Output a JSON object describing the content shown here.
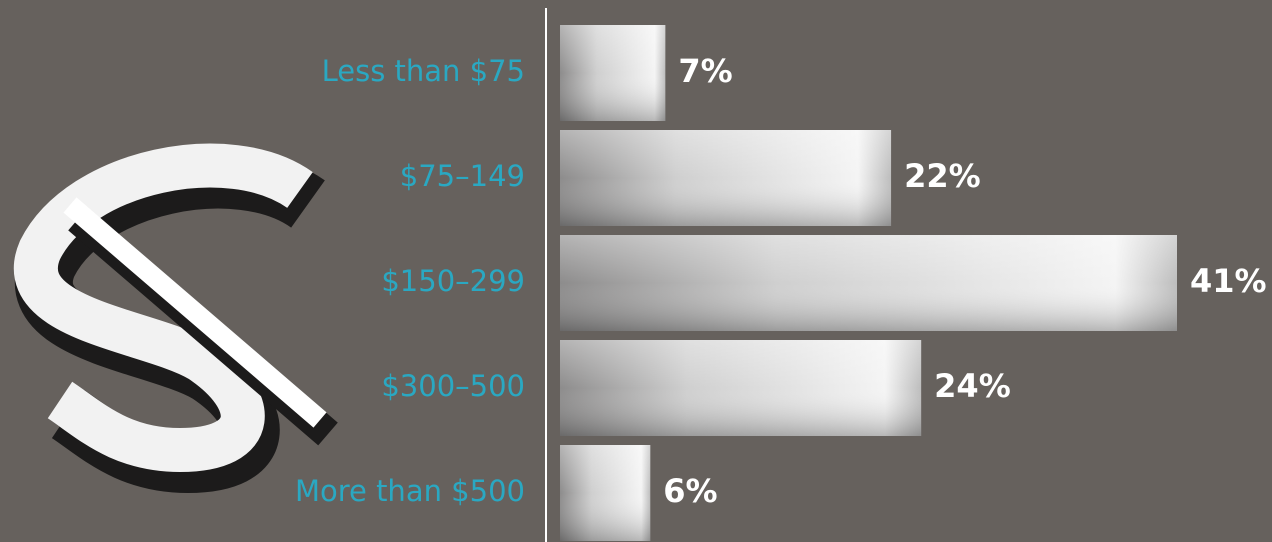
{
  "chart_data": {
    "type": "bar",
    "orientation": "horizontal",
    "categories": [
      "Less than $75",
      "$75–149",
      "$150–299",
      "$300–500",
      "More than $500"
    ],
    "values": [
      7,
      22,
      41,
      24,
      6
    ],
    "value_labels": [
      "7%",
      "22%",
      "41%",
      "24%",
      "6%"
    ]
  }
}
